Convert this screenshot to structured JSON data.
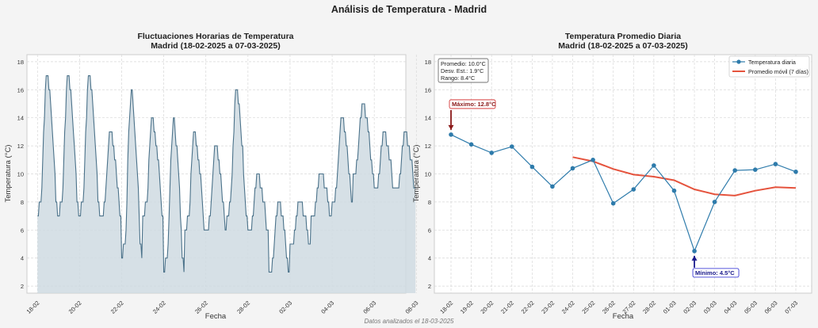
{
  "figure": {
    "suptitle": "Análisis de Temperatura - Madrid",
    "footnote": "Datos analizados el 18-03-2025",
    "background": "#f4f4f4",
    "panel_background": "#ffffff"
  },
  "chart_data": [
    {
      "type": "area",
      "title_line1": "Fluctuaciones Horarias de Temperatura",
      "title_line2": "Madrid (18-02-2025 a 07-03-2025)",
      "xlabel": "Fecha",
      "ylabel": "Temperatura (°C)",
      "ylim": [
        1.5,
        18.5
      ],
      "yticks": [
        2,
        4,
        6,
        8,
        10,
        12,
        14,
        16,
        18
      ],
      "xlim_days": [
        -0.5,
        17.5
      ],
      "xticks": [
        "18-02",
        "20-02",
        "22-02",
        "24-02",
        "26-02",
        "28-02",
        "02-03",
        "04-03",
        "06-03",
        "08-03"
      ],
      "grid": true,
      "line_color": "#4a7189",
      "fill_color": "#cfdae2",
      "series": [
        {
          "daily_min_max": [
            [
              7,
              17
            ],
            [
              7,
              17
            ],
            [
              7,
              17
            ],
            [
              7,
              13
            ],
            [
              4,
              16
            ],
            [
              7,
              14
            ],
            [
              3,
              14
            ],
            [
              6,
              13
            ],
            [
              6,
              12
            ],
            [
              7,
              16
            ],
            [
              6,
              10
            ],
            [
              3,
              8
            ],
            [
              5,
              8
            ],
            [
              7,
              10
            ],
            [
              8,
              14
            ],
            [
              10,
              15
            ],
            [
              9,
              13
            ],
            [
              9,
              13
            ]
          ]
        }
      ]
    },
    {
      "type": "line",
      "title_line1": "Temperatura Promedio Diaria",
      "title_line2": "Madrid (18-02-2025 a 07-03-2025)",
      "xlabel": "Fecha",
      "ylabel": "Temperatura (°C)",
      "ylim": [
        1.5,
        18.5
      ],
      "yticks": [
        2,
        4,
        6,
        8,
        10,
        12,
        14,
        16,
        18
      ],
      "categories": [
        "18-02",
        "19-02",
        "20-02",
        "21-02",
        "22-02",
        "23-02",
        "24-02",
        "25-02",
        "26-02",
        "27-02",
        "28-02",
        "01-03",
        "02-03",
        "03-03",
        "04-03",
        "05-03",
        "06-03",
        "07-03"
      ],
      "grid": true,
      "legend_placement": "top-right",
      "stats_box": [
        "Promedio: 10.0°C",
        "Desv. Est.: 1.9°C",
        "Rango: 8.4°C"
      ],
      "series": [
        {
          "name": "Temperatura diaria",
          "color": "#2e7bab",
          "values": [
            12.8,
            12.1,
            11.5,
            11.95,
            10.5,
            9.1,
            10.4,
            11.0,
            7.9,
            8.9,
            10.6,
            8.8,
            4.5,
            8.0,
            10.25,
            10.3,
            10.7,
            10.15
          ]
        },
        {
          "name": "Promedio móvil (7 días)",
          "color": "#e5533d",
          "values": [
            null,
            null,
            null,
            null,
            null,
            null,
            11.2,
            10.9,
            10.35,
            9.95,
            9.8,
            9.55,
            8.9,
            8.55,
            8.45,
            8.8,
            9.05,
            9.0
          ]
        }
      ],
      "annotations": [
        {
          "text": "Máximo: 12.8°C",
          "value": 12.8,
          "category": "18-02",
          "color": "#8b1a1a",
          "border": "#d02020"
        },
        {
          "text": "Mínimo: 4.5°C",
          "value": 4.5,
          "category": "02-03",
          "color": "#1a1a8b",
          "border": "#2020d0"
        }
      ]
    }
  ]
}
